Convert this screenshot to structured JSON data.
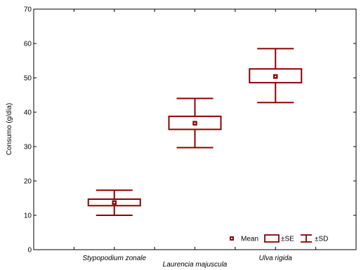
{
  "chart_data": {
    "type": "box",
    "xlabel": "",
    "ylabel": "Consumo (g/día)",
    "ylim": [
      0,
      70
    ],
    "yticks": [
      0,
      10,
      20,
      30,
      40,
      50,
      60,
      70
    ],
    "categories": [
      "Laurencia majuscula",
      "Stypopodium zonale",
      "Ulva rigida"
    ],
    "series": [
      {
        "category": "Stypopodium zonale",
        "mean": 13.7,
        "se_low": 12.8,
        "se_high": 14.7,
        "sd_low": 10.0,
        "sd_high": 17.3
      },
      {
        "category": "Laurencia majuscula",
        "mean": 36.8,
        "se_low": 35.0,
        "se_high": 38.8,
        "sd_low": 29.7,
        "sd_high": 44.0
      },
      {
        "category": "Ulva rigida",
        "mean": 50.4,
        "se_low": 48.6,
        "se_high": 52.6,
        "sd_low": 42.8,
        "sd_high": 58.5
      }
    ],
    "legend": {
      "placement": "bottom-right",
      "items": [
        "Mean",
        "±SE",
        "±SD"
      ]
    },
    "colors": {
      "marks": "#8b0000",
      "axis": "#000000"
    },
    "grid": false
  }
}
